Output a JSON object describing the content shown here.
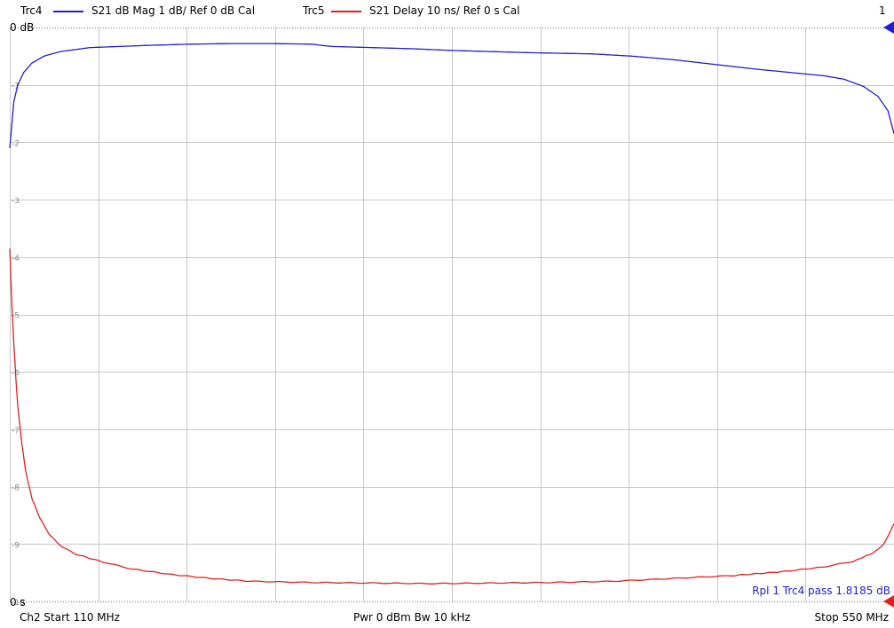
{
  "header": {
    "trc4_label": "Trc4",
    "trc4_desc": "S21  dB Mag  1 dB/ Ref 0 dB  Cal",
    "trc5_label": "Trc5",
    "trc5_desc": "S21  Delay   10 ns/ Ref 0 s   Cal",
    "channel_marker": "1"
  },
  "footer": {
    "start": "Ch2  Start  110 MHz",
    "center": "Pwr  0 dBm  Bw  10 kHz",
    "stop": "Stop  550 MHz"
  },
  "colors": {
    "trc4": "#1f1fd0",
    "trc5": "#e02020",
    "grid": "#c8c8c8"
  },
  "chart_data": {
    "type": "line",
    "title": "",
    "x_range_mhz": [
      110,
      550
    ],
    "y_ref_labels": {
      "top": "0 dB",
      "bottom": "0 s"
    },
    "y_tick_labels": [
      "-1",
      "-2",
      "-3",
      "-4",
      "-5",
      "-6",
      "-7",
      "-8",
      "-9",
      "-10"
    ],
    "y_divisions": 10,
    "x_divisions": 10,
    "ripple_annotation": "Rpl 1  Trc4  pass  1.8185 dB",
    "series": [
      {
        "name": "Trc4",
        "unit": "dB",
        "points": [
          [
            110,
            -2.1
          ],
          [
            111,
            -1.7
          ],
          [
            112,
            -1.3
          ],
          [
            114,
            -1.0
          ],
          [
            117,
            -0.78
          ],
          [
            121,
            -0.62
          ],
          [
            127,
            -0.5
          ],
          [
            135,
            -0.42
          ],
          [
            150,
            -0.35
          ],
          [
            165,
            -0.33
          ],
          [
            180,
            -0.31
          ],
          [
            200,
            -0.29
          ],
          [
            220,
            -0.28
          ],
          [
            240,
            -0.28
          ],
          [
            260,
            -0.29
          ],
          [
            270,
            -0.33
          ],
          [
            290,
            -0.35
          ],
          [
            310,
            -0.37
          ],
          [
            330,
            -0.4
          ],
          [
            350,
            -0.42
          ],
          [
            370,
            -0.44
          ],
          [
            400,
            -0.46
          ],
          [
            420,
            -0.5
          ],
          [
            440,
            -0.56
          ],
          [
            460,
            -0.64
          ],
          [
            480,
            -0.72
          ],
          [
            500,
            -0.79
          ],
          [
            515,
            -0.84
          ],
          [
            525,
            -0.9
          ],
          [
            535,
            -1.03
          ],
          [
            542,
            -1.2
          ],
          [
            547,
            -1.45
          ],
          [
            550,
            -1.85
          ]
        ]
      },
      {
        "name": "Trc5",
        "unit": "ns",
        "points": [
          [
            110,
            -38.5
          ],
          [
            110.5,
            -43
          ],
          [
            111,
            -48
          ],
          [
            112,
            -55
          ],
          [
            113,
            -61
          ],
          [
            114,
            -66
          ],
          [
            116,
            -72.5
          ],
          [
            118,
            -77.5
          ],
          [
            121,
            -82
          ],
          [
            125,
            -85.5
          ],
          [
            130,
            -88.5
          ],
          [
            136,
            -90.5
          ],
          [
            143,
            -91.8
          ],
          [
            155,
            -93
          ],
          [
            170,
            -94.3
          ],
          [
            190,
            -95.3
          ],
          [
            210,
            -96
          ],
          [
            230,
            -96.5
          ],
          [
            260,
            -96.7
          ],
          [
            290,
            -96.8
          ],
          [
            320,
            -96.9
          ],
          [
            350,
            -96.8
          ],
          [
            380,
            -96.7
          ],
          [
            410,
            -96.5
          ],
          [
            440,
            -96
          ],
          [
            470,
            -95.5
          ],
          [
            495,
            -94.8
          ],
          [
            515,
            -94
          ],
          [
            530,
            -93
          ],
          [
            540,
            -91.5
          ],
          [
            545,
            -90
          ],
          [
            550,
            -86.5
          ]
        ]
      }
    ]
  }
}
